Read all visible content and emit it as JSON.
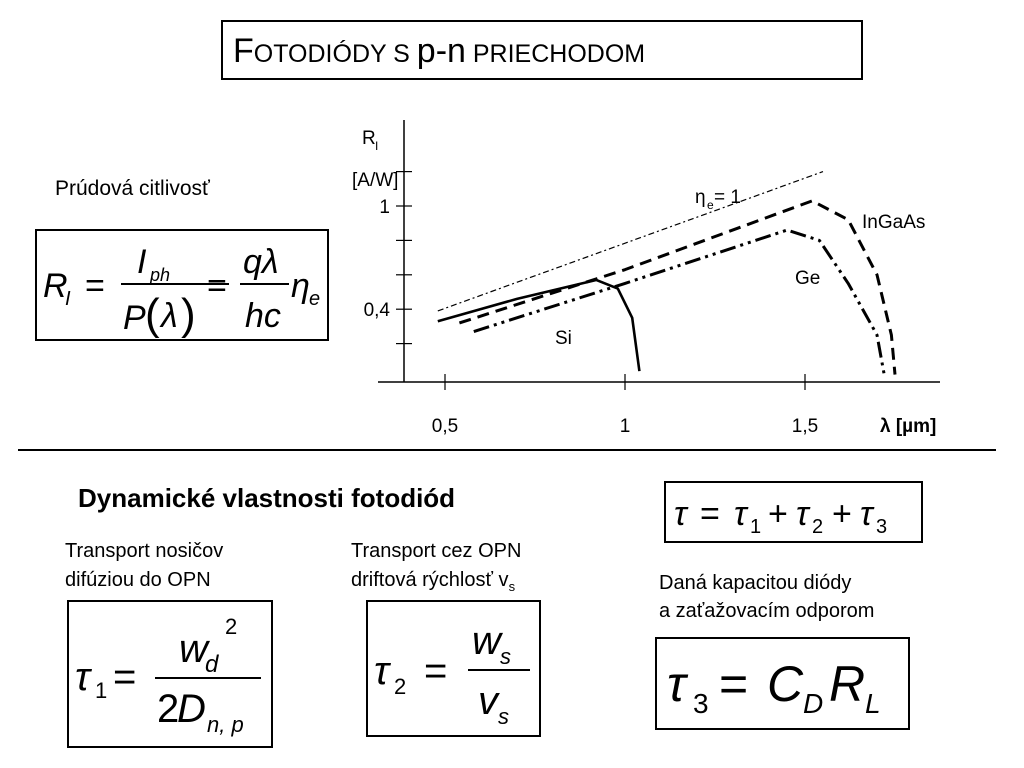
{
  "title": {
    "first": "F",
    "first_rest": "OTODIÓDY S ",
    "pn": "p-n",
    "rest": " PRIECHODOM"
  },
  "sensitivity_label": "Prúdová citlivosť",
  "dynamic_heading": "Dynamické vlastnosti fotodiód",
  "transport1": {
    "line1": "Transport nosičov",
    "line2": "difúziou do OPN"
  },
  "transport2": {
    "line1": "Transport cez OPN",
    "line2": "driftová rýchlosť v",
    "line2_sub": "s"
  },
  "capacity": {
    "line1": "Daná kapacitou diódy",
    "line2": "a zaťažovacím odporom"
  },
  "chart_data": {
    "type": "line",
    "ylabel": "R",
    "ylabel_sub": "I",
    "yunit": "[A/W]",
    "xlabel": "λ [µm]",
    "xticks": [
      {
        "v": 0.5,
        "label": "0,5"
      },
      {
        "v": 1.0,
        "label": "1"
      },
      {
        "v": 1.5,
        "label": "1,5"
      }
    ],
    "yticks": [
      {
        "v": 0.4,
        "label": "0,4"
      },
      {
        "v": 1.0,
        "label": "1"
      }
    ],
    "series": [
      {
        "name": "Si",
        "style": "solid",
        "points": [
          [
            0.48,
            0.33
          ],
          [
            0.7,
            0.46
          ],
          [
            0.92,
            0.57
          ],
          [
            0.98,
            0.52
          ],
          [
            1.02,
            0.35
          ],
          [
            1.04,
            0.04
          ]
        ]
      },
      {
        "name": "Ge",
        "style": "dashdotdot",
        "points": [
          [
            0.58,
            0.27
          ],
          [
            1.0,
            0.55
          ],
          [
            1.45,
            0.86
          ],
          [
            1.54,
            0.8
          ],
          [
            1.62,
            0.55
          ],
          [
            1.7,
            0.25
          ],
          [
            1.72,
            0.02
          ]
        ]
      },
      {
        "name": "InGaAs",
        "style": "dashed",
        "points": [
          [
            0.54,
            0.32
          ],
          [
            1.0,
            0.63
          ],
          [
            1.52,
            1.03
          ],
          [
            1.62,
            0.92
          ],
          [
            1.7,
            0.6
          ],
          [
            1.74,
            0.25
          ],
          [
            1.75,
            0.02
          ]
        ]
      },
      {
        "name": "η",
        "name_sub": "e",
        "name_tail": "= 1",
        "style": "dashdot-thin",
        "points": [
          [
            0.48,
            0.39
          ],
          [
            1.55,
            1.2
          ]
        ]
      }
    ]
  }
}
